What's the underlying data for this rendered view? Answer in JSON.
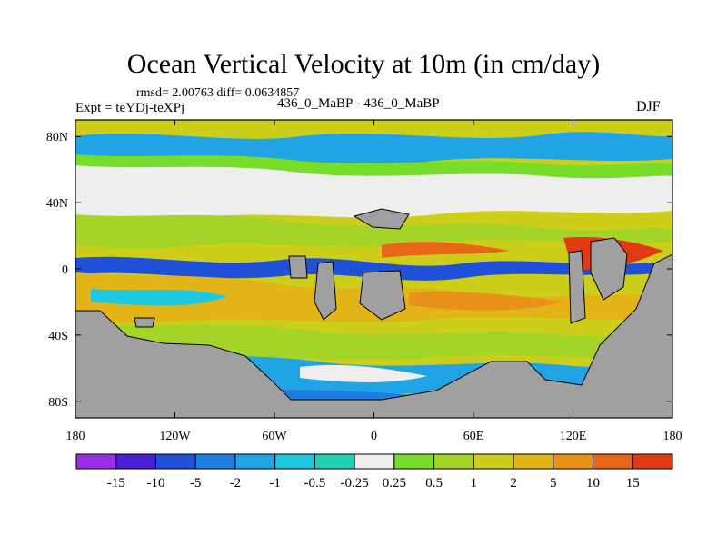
{
  "chart_data": {
    "type": "heatmap",
    "title": "Ocean Vertical Velocity at 10m (in cm/day)",
    "stats_text": "rmsd= 2.00763 diff= 0.0634857",
    "left_label": "Expt = teYDj-teXPj",
    "center_label": "436_0_MaBP - 436_0_MaBP",
    "right_label": "DJF",
    "x_range": [
      -180,
      180
    ],
    "y_range": [
      -90,
      90
    ],
    "x_ticks": [
      {
        "value": -180,
        "label": "180"
      },
      {
        "value": -120,
        "label": "120W"
      },
      {
        "value": -60,
        "label": "60W"
      },
      {
        "value": 0,
        "label": "0"
      },
      {
        "value": 60,
        "label": "60E"
      },
      {
        "value": 120,
        "label": "120E"
      },
      {
        "value": 180,
        "label": "180"
      }
    ],
    "y_ticks": [
      {
        "value": 80,
        "label": "80N"
      },
      {
        "value": 40,
        "label": "40N"
      },
      {
        "value": 0,
        "label": "0"
      },
      {
        "value": -40,
        "label": "40S"
      },
      {
        "value": -80,
        "label": "80S"
      }
    ],
    "colorbar": {
      "colors": [
        "#9b2fe8",
        "#4b1fd6",
        "#2050d8",
        "#1e7ee0",
        "#20a4e6",
        "#1ec8e0",
        "#20d2b4",
        "#eeeeee",
        "#78dc2a",
        "#a4d428",
        "#ccce1a",
        "#e2b418",
        "#e8921a",
        "#e86618",
        "#e03a14"
      ],
      "labels": [
        "-15",
        "-10",
        "-5",
        "-2",
        "-1",
        "-0.5",
        "-0.25",
        "0.25",
        "0.5",
        "1",
        "2",
        "5",
        "10",
        "15"
      ]
    },
    "land_color": "#a0a0a0"
  }
}
